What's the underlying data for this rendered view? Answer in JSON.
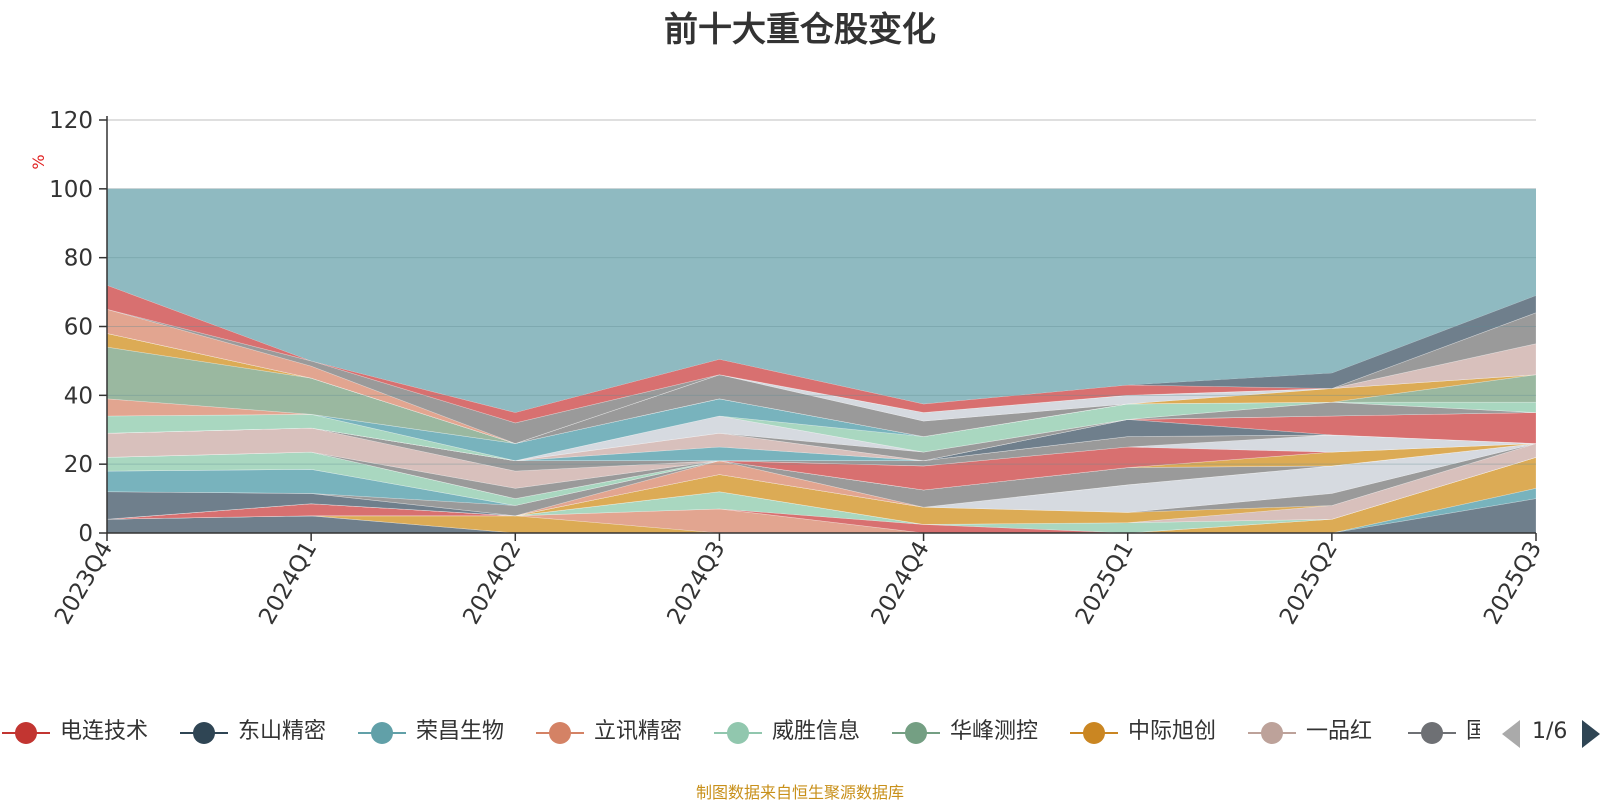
{
  "title": "前十大重仓股变化",
  "source_note": "制图数据来自恒生聚源数据库",
  "legend_page": "1/6",
  "colors": {
    "background": "#ffffff",
    "other_area": "#8fbac1",
    "axis": "#333333",
    "grid": "#cccccc",
    "unit": "#e02020"
  },
  "chart_data": {
    "type": "area",
    "stacked": true,
    "title": "前十大重仓股变化",
    "ylabel": "%",
    "xlabel": "",
    "ylim": [
      0,
      120
    ],
    "yticks": [
      "0",
      "20",
      "40",
      "60",
      "80",
      "100",
      "120"
    ],
    "categories": [
      "2023Q4",
      "2024Q1",
      "2024Q2",
      "2024Q3",
      "2024Q4",
      "2025Q1",
      "2025Q2",
      "2025Q3"
    ],
    "grid": true,
    "legend_position": "bottom",
    "legend_visible": [
      "电连技术",
      "东山精密",
      "荣昌生物",
      "立讯精密",
      "威胜信息",
      "华峰测控",
      "中际旭创",
      "一品红",
      "国"
    ],
    "series": [
      {
        "name": "",
        "color": "#6f7f8c",
        "values": [
          4,
          5,
          0,
          0,
          0,
          0,
          0,
          10
        ]
      },
      {
        "name": "",
        "color": "#78b3bd",
        "values": [
          0,
          0,
          0,
          0,
          0,
          0,
          0,
          3
        ]
      },
      {
        "name": "",
        "color": "#dcab55",
        "values": [
          0,
          0,
          5,
          0,
          0,
          0,
          4,
          9
        ]
      },
      {
        "name": "",
        "color": "#e2a590",
        "values": [
          0,
          0,
          0,
          7,
          0,
          0,
          0,
          0
        ]
      },
      {
        "name": "",
        "color": "#d87070",
        "values": [
          0,
          0,
          0,
          0,
          2.5,
          0,
          0,
          0
        ]
      },
      {
        "name": "",
        "color": "#a9d7c0",
        "values": [
          0,
          0,
          0,
          5,
          0,
          3,
          0,
          0
        ]
      },
      {
        "name": "",
        "color": "#d87070",
        "values": [
          0,
          3.5,
          0,
          0,
          0,
          0,
          0,
          0
        ]
      },
      {
        "name": "",
        "color": "#d8c0bc",
        "values": [
          0,
          0,
          0,
          0,
          0,
          0,
          4,
          4
        ]
      },
      {
        "name": "",
        "color": "#dcab55",
        "values": [
          0,
          0,
          0,
          5,
          5,
          3,
          0,
          0
        ]
      },
      {
        "name": "",
        "color": "#9a9a9a",
        "values": [
          0,
          0,
          0,
          0,
          0,
          0,
          3.5,
          0
        ]
      },
      {
        "name": "",
        "color": "#d6dae0",
        "values": [
          0,
          0,
          0,
          0,
          0,
          8,
          8,
          0
        ]
      },
      {
        "name": "",
        "color": "#6f7f8c",
        "values": [
          8,
          3,
          0,
          0,
          0,
          0,
          0,
          0
        ]
      },
      {
        "name": "",
        "color": "#e2a590",
        "values": [
          0,
          0,
          0,
          4,
          0,
          0,
          0,
          0
        ]
      },
      {
        "name": "",
        "color": "#9a9a9a",
        "values": [
          0,
          0,
          3,
          0,
          5,
          5,
          0,
          0
        ]
      },
      {
        "name": "",
        "color": "#78b3bd",
        "values": [
          6,
          7,
          0,
          0,
          0,
          0,
          0,
          0
        ]
      },
      {
        "name": "",
        "color": "#dcab55",
        "values": [
          0,
          0,
          0,
          0,
          0,
          0,
          4,
          0
        ]
      },
      {
        "name": "",
        "color": "#a9d7c0",
        "values": [
          4,
          5,
          2,
          0,
          0,
          0,
          0,
          0
        ]
      },
      {
        "name": "",
        "color": "#d87070",
        "values": [
          0,
          0,
          0,
          0,
          7,
          6,
          0,
          0
        ]
      },
      {
        "name": "",
        "color": "#d6dae0",
        "values": [
          0,
          0,
          0,
          0,
          0,
          0,
          5,
          0
        ]
      },
      {
        "name": "",
        "color": "#9a9a9a",
        "values": [
          0,
          0,
          3,
          0,
          1.5,
          3,
          0,
          0
        ]
      },
      {
        "name": "",
        "color": "#d8c0bc",
        "values": [
          7,
          7,
          5,
          0,
          0,
          0,
          0,
          0
        ]
      },
      {
        "name": "",
        "color": "#9a9a9a",
        "values": [
          0,
          0,
          3,
          0,
          0,
          0,
          0,
          0
        ]
      },
      {
        "name": "",
        "color": "#6f7f8c",
        "values": [
          0,
          0,
          0,
          0,
          0,
          5,
          0,
          0
        ]
      },
      {
        "name": "",
        "color": "#d87070",
        "values": [
          0,
          0,
          0,
          0,
          0,
          0,
          5.5,
          9
        ]
      },
      {
        "name": "",
        "color": "#78b3bd",
        "values": [
          0,
          0,
          0,
          4,
          0,
          0,
          0,
          0
        ]
      },
      {
        "name": "",
        "color": "#d8c0bc",
        "values": [
          0,
          0,
          0,
          4,
          0,
          0,
          0,
          0
        ]
      },
      {
        "name": "",
        "color": "#9a9a9a",
        "values": [
          0,
          0,
          0,
          0,
          2.5,
          0,
          4,
          0
        ]
      },
      {
        "name": "",
        "color": "#d6dae0",
        "values": [
          0,
          0,
          0,
          5,
          0,
          0,
          0,
          0
        ]
      },
      {
        "name": "",
        "color": "#a9d7c0",
        "values": [
          5,
          4,
          0,
          0,
          4.5,
          4.5,
          0,
          3
        ]
      },
      {
        "name": "",
        "color": "#78b3bd",
        "values": [
          0,
          0,
          5,
          5,
          0,
          0,
          0,
          0
        ]
      },
      {
        "name": "",
        "color": "#e2a590",
        "values": [
          5,
          0,
          0,
          0,
          0,
          0,
          0,
          0
        ]
      },
      {
        "name": "",
        "color": "#9ab8a0",
        "values": [
          15,
          10.5,
          0,
          0,
          0,
          0,
          0,
          8
        ]
      },
      {
        "name": "",
        "color": "#dcab55",
        "values": [
          4,
          0,
          0,
          0,
          0,
          0,
          4,
          0
        ]
      },
      {
        "name": "",
        "color": "#9a9a9a",
        "values": [
          0,
          0,
          0,
          7,
          4.5,
          0,
          0,
          0
        ]
      },
      {
        "name": "",
        "color": "#d6dae0",
        "values": [
          0,
          0,
          0,
          0,
          2.5,
          2.5,
          0,
          0
        ]
      },
      {
        "name": "",
        "color": "#d8c0bc",
        "values": [
          0,
          0,
          0,
          0,
          0,
          0,
          0,
          9
        ]
      },
      {
        "name": "",
        "color": "#e2a590",
        "values": [
          7,
          3.5,
          0,
          0,
          0,
          0,
          0,
          0
        ]
      },
      {
        "name": "",
        "color": "#9a9a9a",
        "values": [
          0,
          1.5,
          6,
          0,
          0,
          0,
          0,
          9
        ]
      },
      {
        "name": "",
        "color": "#d87070",
        "values": [
          7,
          0,
          3,
          4.5,
          2.5,
          3,
          0,
          0
        ]
      },
      {
        "name": "",
        "color": "#6f7f8c",
        "values": [
          0,
          0,
          0,
          0,
          0,
          0,
          4.5,
          5
        ]
      }
    ],
    "other_series": {
      "name": "",
      "color": "#8fbac1",
      "total": 100
    }
  },
  "legend_items": [
    {
      "label": "电连技术",
      "color": "#c23531"
    },
    {
      "label": "东山精密",
      "color": "#2f4554"
    },
    {
      "label": "荣昌生物",
      "color": "#61a0a8"
    },
    {
      "label": "立讯精密",
      "color": "#d48265"
    },
    {
      "label": "威胜信息",
      "color": "#91c7ae"
    },
    {
      "label": "华峰测控",
      "color": "#749f83"
    },
    {
      "label": "中际旭创",
      "color": "#ca8622"
    },
    {
      "label": "一品红",
      "color": "#bda29a"
    },
    {
      "label": "国",
      "color": "#6e7074"
    }
  ]
}
